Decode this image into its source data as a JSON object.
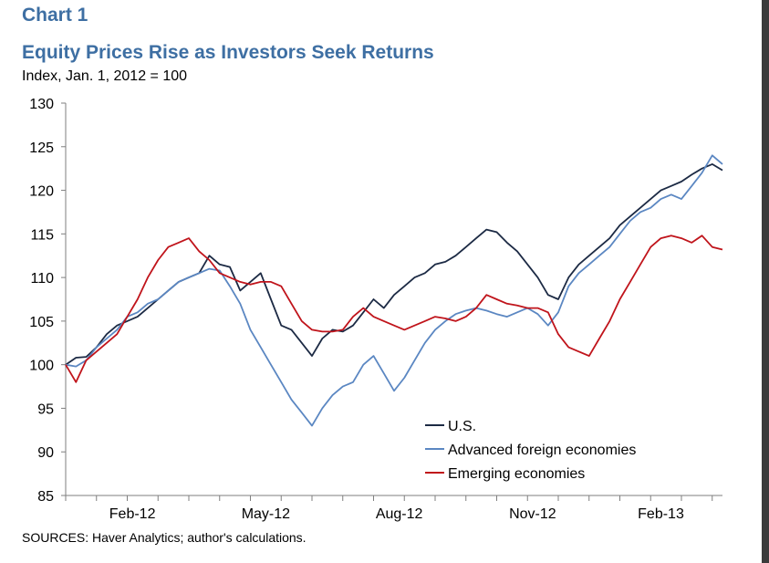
{
  "chart_data": {
    "type": "line",
    "chart_label": "Chart 1",
    "title": "Equity Prices Rise as Investors Seek Returns",
    "ylabel": "Index, Jan. 1, 2012 = 100",
    "ylim": [
      85,
      130
    ],
    "yticks": [
      85,
      90,
      95,
      100,
      105,
      110,
      115,
      120,
      125,
      130
    ],
    "xlim": [
      0,
      64
    ],
    "xticks": [
      {
        "label": "Feb-12",
        "x": 6.5
      },
      {
        "label": "May-12",
        "x": 19.5
      },
      {
        "label": "Aug-12",
        "x": 32.5
      },
      {
        "label": "Nov-12",
        "x": 45.5
      },
      {
        "label": "Feb-13",
        "x": 58
      }
    ],
    "grid": false,
    "legend_position": "bottom-right",
    "source": "SOURCES:  Haver Analytics; author's calculations.",
    "series": [
      {
        "name": "U.S.",
        "color": "#1c2a44",
        "values": [
          100,
          100.8,
          100.9,
          102,
          103.5,
          104.5,
          105,
          105.5,
          106.5,
          107.5,
          108.5,
          109.5,
          110,
          110.5,
          112.5,
          111.5,
          111.2,
          108.5,
          109.5,
          110.5,
          107.5,
          104.5,
          104,
          102.5,
          101,
          103,
          104,
          103.8,
          104.5,
          106,
          107.5,
          106.5,
          108,
          109,
          110,
          110.5,
          111.5,
          111.8,
          112.5,
          113.5,
          114.5,
          115.5,
          115.2,
          114,
          113,
          111.5,
          110,
          108,
          107.5,
          110,
          111.5,
          112.5,
          113.5,
          114.5,
          116,
          117,
          118,
          119,
          120,
          120.5,
          121,
          121.8,
          122.5,
          123,
          122.3
        ]
      },
      {
        "name": "Advanced foreign economies",
        "color": "#5b87c2",
        "values": [
          100,
          99.8,
          100.5,
          102,
          103,
          104,
          105.5,
          106,
          107,
          107.5,
          108.5,
          109.5,
          110,
          110.5,
          111,
          110.8,
          109,
          107,
          104,
          102,
          100,
          98,
          96,
          94.5,
          93,
          95,
          96.5,
          97.5,
          98,
          100,
          101,
          99,
          97,
          98.5,
          100.5,
          102.5,
          104,
          105,
          105.8,
          106.2,
          106.5,
          106.2,
          105.8,
          105.5,
          106,
          106.5,
          105.8,
          104.5,
          106,
          109,
          110.5,
          111.5,
          112.5,
          113.5,
          115,
          116.5,
          117.5,
          118,
          119,
          119.5,
          119,
          120.5,
          122,
          124,
          123
        ]
      },
      {
        "name": "Emerging economies",
        "color": "#c0141b",
        "values": [
          100,
          98,
          100.5,
          101.5,
          102.5,
          103.5,
          105.5,
          107.5,
          110,
          112,
          113.5,
          114,
          114.5,
          113,
          112,
          110.5,
          110,
          109.5,
          109.2,
          109.5,
          109.5,
          109,
          107,
          105,
          104,
          103.8,
          103.8,
          104,
          105.5,
          106.5,
          105.5,
          105,
          104.5,
          104,
          104.5,
          105,
          105.5,
          105.3,
          105,
          105.5,
          106.5,
          108,
          107.5,
          107,
          106.8,
          106.5,
          106.5,
          106,
          103.5,
          102,
          101.5,
          101,
          103,
          105,
          107.5,
          109.5,
          111.5,
          113.5,
          114.5,
          114.8,
          114.5,
          114,
          114.8,
          113.5,
          113.2
        ]
      }
    ]
  }
}
